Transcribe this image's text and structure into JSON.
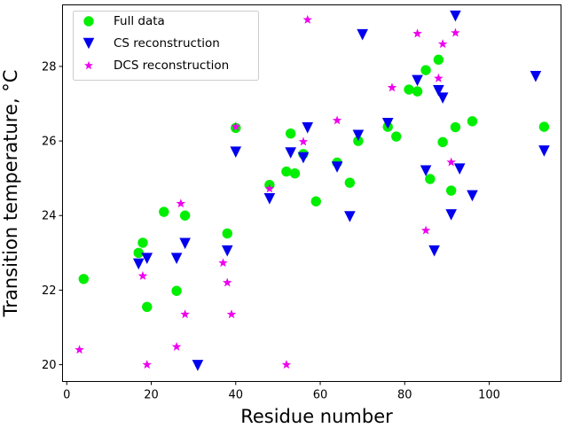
{
  "chart_data": {
    "type": "scatter",
    "xlabel": "Residue number",
    "ylabel": "Transition temperature, °C",
    "xlim": [
      -1,
      117
    ],
    "ylim": [
      19.55,
      29.65
    ],
    "xticks": [
      0,
      20,
      40,
      60,
      80,
      100
    ],
    "yticks": [
      20,
      22,
      24,
      26,
      28
    ],
    "legend_position": "top-left",
    "series": [
      {
        "name": "Full data",
        "marker": "circle",
        "color": "#00ee00",
        "points": [
          {
            "x": 4,
            "y": 22.3
          },
          {
            "x": 17,
            "y": 23.0
          },
          {
            "x": 18,
            "y": 23.27
          },
          {
            "x": 19,
            "y": 21.55
          },
          {
            "x": 23,
            "y": 24.1
          },
          {
            "x": 26,
            "y": 21.98
          },
          {
            "x": 28,
            "y": 24.0
          },
          {
            "x": 38,
            "y": 23.52
          },
          {
            "x": 40,
            "y": 26.35
          },
          {
            "x": 48,
            "y": 24.82
          },
          {
            "x": 52,
            "y": 25.18
          },
          {
            "x": 53,
            "y": 26.2
          },
          {
            "x": 54,
            "y": 25.13
          },
          {
            "x": 56,
            "y": 25.65
          },
          {
            "x": 59,
            "y": 24.38
          },
          {
            "x": 64,
            "y": 25.42
          },
          {
            "x": 67,
            "y": 24.88
          },
          {
            "x": 69,
            "y": 26.0
          },
          {
            "x": 76,
            "y": 26.38
          },
          {
            "x": 78,
            "y": 26.12
          },
          {
            "x": 81,
            "y": 27.38
          },
          {
            "x": 83,
            "y": 27.33
          },
          {
            "x": 85,
            "y": 27.9
          },
          {
            "x": 86,
            "y": 24.98
          },
          {
            "x": 88,
            "y": 28.18
          },
          {
            "x": 89,
            "y": 25.97
          },
          {
            "x": 91,
            "y": 24.67
          },
          {
            "x": 92,
            "y": 26.37
          },
          {
            "x": 96,
            "y": 26.53
          },
          {
            "x": 113,
            "y": 26.38
          }
        ]
      },
      {
        "name": "CS reconstruction",
        "marker": "triangle-down",
        "color": "#0000ee",
        "points": [
          {
            "x": 17,
            "y": 22.7
          },
          {
            "x": 19,
            "y": 22.85
          },
          {
            "x": 26,
            "y": 22.85
          },
          {
            "x": 28,
            "y": 23.25
          },
          {
            "x": 31,
            "y": 19.98
          },
          {
            "x": 38,
            "y": 23.05
          },
          {
            "x": 40,
            "y": 25.7
          },
          {
            "x": 48,
            "y": 24.45
          },
          {
            "x": 53,
            "y": 25.68
          },
          {
            "x": 56,
            "y": 25.55
          },
          {
            "x": 57,
            "y": 26.35
          },
          {
            "x": 64,
            "y": 25.3
          },
          {
            "x": 67,
            "y": 23.97
          },
          {
            "x": 69,
            "y": 26.15
          },
          {
            "x": 70,
            "y": 28.85
          },
          {
            "x": 76,
            "y": 26.47
          },
          {
            "x": 83,
            "y": 27.62
          },
          {
            "x": 85,
            "y": 25.2
          },
          {
            "x": 87,
            "y": 23.05
          },
          {
            "x": 88,
            "y": 27.35
          },
          {
            "x": 89,
            "y": 27.15
          },
          {
            "x": 91,
            "y": 24.02
          },
          {
            "x": 92,
            "y": 29.35
          },
          {
            "x": 93,
            "y": 25.25
          },
          {
            "x": 96,
            "y": 24.53
          },
          {
            "x": 111,
            "y": 27.73
          },
          {
            "x": 113,
            "y": 25.73
          }
        ]
      },
      {
        "name": "DCS reconstruction",
        "marker": "star",
        "color": "#ee00ee",
        "points": [
          {
            "x": 3,
            "y": 20.4
          },
          {
            "x": 18,
            "y": 22.38
          },
          {
            "x": 19,
            "y": 20.0
          },
          {
            "x": 26,
            "y": 20.48
          },
          {
            "x": 27,
            "y": 24.32
          },
          {
            "x": 28,
            "y": 21.35
          },
          {
            "x": 37,
            "y": 22.73
          },
          {
            "x": 38,
            "y": 22.2
          },
          {
            "x": 39,
            "y": 21.35
          },
          {
            "x": 40,
            "y": 26.38
          },
          {
            "x": 48,
            "y": 24.72
          },
          {
            "x": 52,
            "y": 20.0
          },
          {
            "x": 56,
            "y": 25.98
          },
          {
            "x": 57,
            "y": 29.25
          },
          {
            "x": 64,
            "y": 26.55
          },
          {
            "x": 77,
            "y": 27.43
          },
          {
            "x": 83,
            "y": 28.88
          },
          {
            "x": 85,
            "y": 23.6
          },
          {
            "x": 88,
            "y": 27.68
          },
          {
            "x": 89,
            "y": 28.6
          },
          {
            "x": 91,
            "y": 25.43
          },
          {
            "x": 92,
            "y": 28.9
          }
        ]
      }
    ]
  }
}
